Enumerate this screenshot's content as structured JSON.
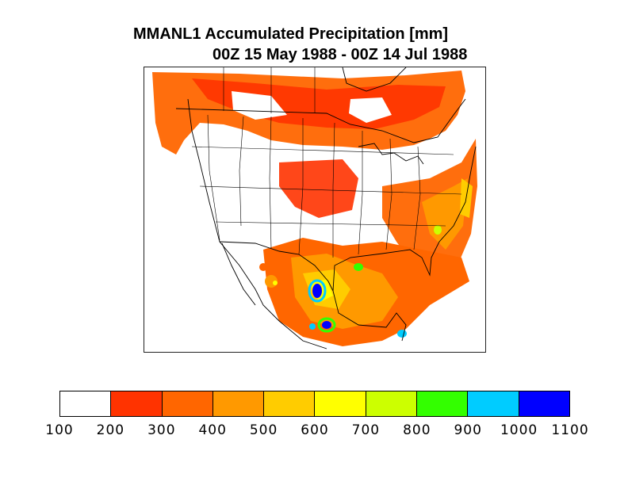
{
  "title": {
    "line1": "MMANL1 Accumulated Precipitation [mm]",
    "line2": "00Z 15 May 1988 - 00Z 14 Jul 1988"
  },
  "map": {
    "region": "North America",
    "variable": "accumulated precipitation",
    "units": "mm"
  },
  "colorbar": {
    "colors": [
      "#ffffff",
      "#ff3300",
      "#ff6600",
      "#ff9900",
      "#ffcc00",
      "#ffff00",
      "#ccff00",
      "#33ff00",
      "#00ccff",
      "#0000ff"
    ],
    "labels": [
      "100",
      "200",
      "300",
      "400",
      "500",
      "600",
      "700",
      "800",
      "900",
      "1000",
      "1100"
    ]
  }
}
